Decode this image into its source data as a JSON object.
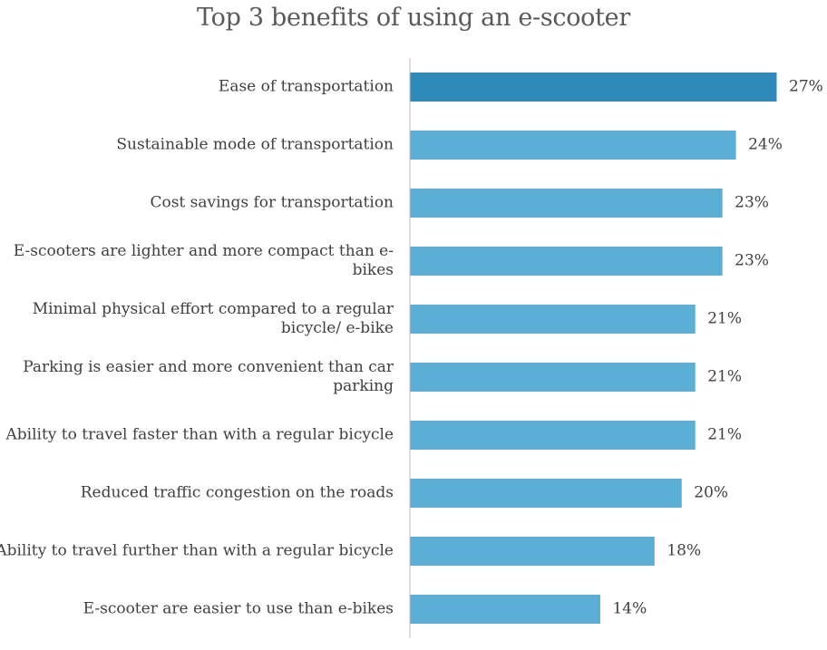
{
  "chart_data": {
    "type": "bar",
    "orientation": "horizontal",
    "title": "Top 3 benefits of using an e-scooter",
    "categories": [
      [
        "Ease of transportation"
      ],
      [
        "Sustainable mode of transportation"
      ],
      [
        "Cost savings for transportation"
      ],
      [
        "E-scooters are lighter and more compact than e-",
        "bikes"
      ],
      [
        "Minimal physical effort compared to a regular",
        "bicycle/ e-bike"
      ],
      [
        "Parking is easier and more convenient than car",
        "parking"
      ],
      [
        "Ability to travel faster than with a regular bicycle"
      ],
      [
        "Reduced traffic congestion on the roads"
      ],
      [
        "Ability to travel further than with a regular bicycle"
      ],
      [
        "E-scooter are easier to use than e-bikes"
      ]
    ],
    "values": [
      27,
      24,
      23,
      23,
      21,
      21,
      21,
      20,
      18,
      14
    ],
    "value_labels": [
      "27%",
      "24%",
      "23%",
      "23%",
      "21%",
      "21%",
      "21%",
      "20%",
      "18%",
      "14%"
    ],
    "unit": "%",
    "xlim": [
      0,
      30
    ],
    "grid": false,
    "legend": "none",
    "colors": {
      "highlight": "#2E8AB8",
      "bar": "#5BAED6",
      "axis": "#BFBFBF",
      "label": "#404040"
    },
    "highlight_index": 0
  }
}
